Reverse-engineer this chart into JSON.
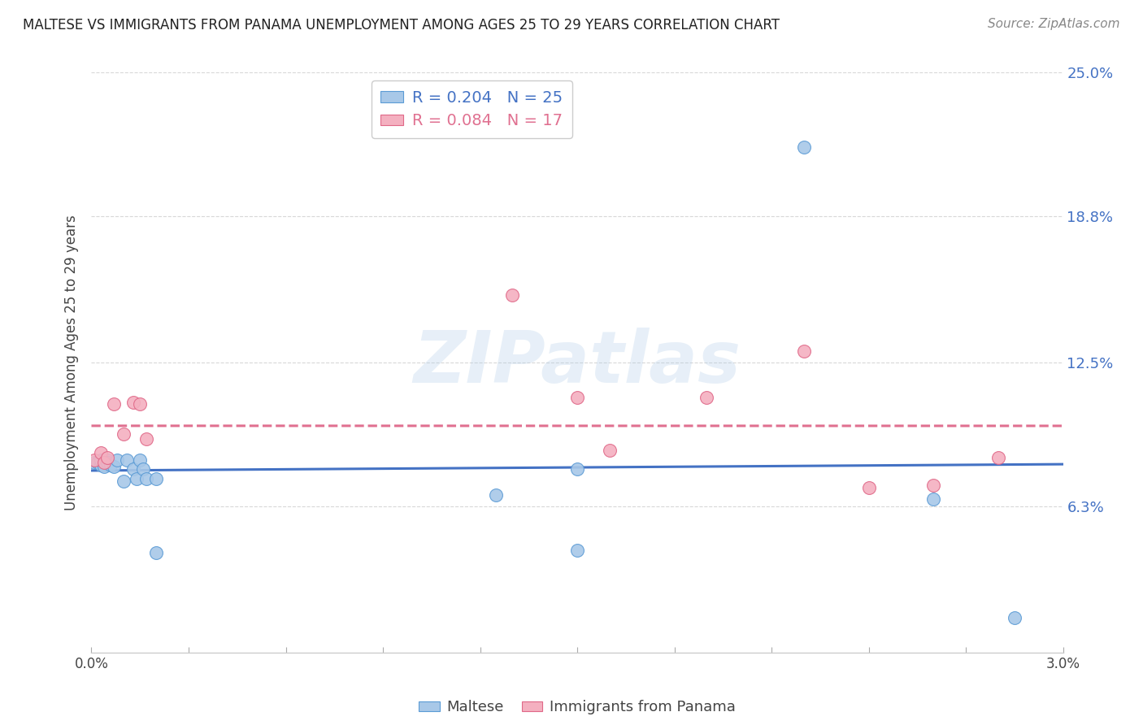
{
  "title": "MALTESE VS IMMIGRANTS FROM PANAMA UNEMPLOYMENT AMONG AGES 25 TO 29 YEARS CORRELATION CHART",
  "source": "Source: ZipAtlas.com",
  "ylabel": "Unemployment Among Ages 25 to 29 years",
  "xlim": [
    0.0,
    0.03
  ],
  "ylim": [
    0.0,
    0.25
  ],
  "xtick_labels": [
    "0.0%",
    "3.0%"
  ],
  "ytick_positions": [
    0.063,
    0.125,
    0.188,
    0.25
  ],
  "ytick_labels": [
    "6.3%",
    "12.5%",
    "18.8%",
    "25.0%"
  ],
  "maltese_x": [
    0.0001,
    0.0002,
    0.0003,
    0.0003,
    0.0004,
    0.0005,
    0.0005,
    0.0006,
    0.0007,
    0.0008,
    0.001,
    0.0011,
    0.0013,
    0.0014,
    0.0015,
    0.0016,
    0.0017,
    0.002,
    0.002,
    0.0125,
    0.015,
    0.015,
    0.022,
    0.026,
    0.0285
  ],
  "maltese_y": [
    0.082,
    0.082,
    0.081,
    0.083,
    0.08,
    0.083,
    0.082,
    0.081,
    0.08,
    0.083,
    0.074,
    0.083,
    0.079,
    0.075,
    0.083,
    0.079,
    0.075,
    0.075,
    0.043,
    0.068,
    0.079,
    0.044,
    0.218,
    0.066,
    0.015
  ],
  "panama_x": [
    0.0001,
    0.0003,
    0.0004,
    0.0005,
    0.0007,
    0.001,
    0.0013,
    0.0015,
    0.0017,
    0.013,
    0.015,
    0.016,
    0.019,
    0.022,
    0.024,
    0.026,
    0.028
  ],
  "panama_y": [
    0.083,
    0.086,
    0.082,
    0.084,
    0.107,
    0.094,
    0.108,
    0.107,
    0.092,
    0.154,
    0.11,
    0.087,
    0.11,
    0.13,
    0.071,
    0.072,
    0.084
  ],
  "maltese_R": 0.204,
  "maltese_N": 25,
  "panama_R": 0.084,
  "panama_N": 17,
  "blue_scatter_color": "#a8c8e8",
  "blue_edge_color": "#5b9bd5",
  "pink_scatter_color": "#f4b0c0",
  "pink_edge_color": "#e06888",
  "blue_line_color": "#4472c4",
  "pink_line_color": "#e07090",
  "scatter_size": 130,
  "watermark": "ZIPatlas",
  "background_color": "#ffffff",
  "grid_color": "#d8d8d8"
}
